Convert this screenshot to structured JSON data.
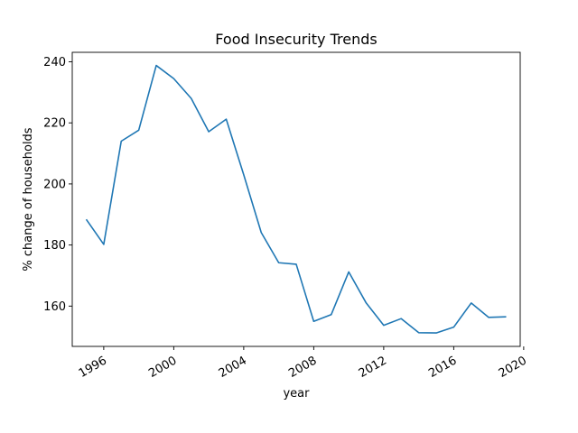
{
  "chart_data": {
    "type": "line",
    "title": "Food Insecurity Trends",
    "xlabel": "year",
    "ylabel": "% change of households",
    "x": [
      1995,
      1996,
      1997,
      1998,
      1999,
      2000,
      2001,
      2002,
      2003,
      2004,
      2005,
      2006,
      2007,
      2008,
      2009,
      2010,
      2011,
      2012,
      2013,
      2014,
      2015,
      2016,
      2017,
      2018,
      2019
    ],
    "series": [
      {
        "color": "#1f77b4",
        "values": [
          188.4,
          180.2,
          214.0,
          217.6,
          238.8,
          234.5,
          228.0,
          217.1,
          221.2,
          203.0,
          184.1,
          174.2,
          173.7,
          155.0,
          157.2,
          171.2,
          161.0,
          153.7,
          155.9,
          151.3,
          151.2,
          153.1,
          161.0,
          156.3,
          156.5
        ]
      }
    ],
    "xlim": [
      1994.2,
      2019.8
    ],
    "ylim": [
      146.8,
      243.1
    ],
    "xticks": [
      1996,
      2000,
      2004,
      2008,
      2012,
      2016,
      2020
    ],
    "xtick_labels": [
      "1996",
      "2000",
      "2004",
      "2008",
      "2012",
      "2016",
      "2020"
    ],
    "yticks": [
      160,
      180,
      200,
      220,
      240
    ],
    "ytick_labels": [
      "160",
      "180",
      "200",
      "220",
      "240"
    ],
    "grid": false,
    "legend": "none"
  }
}
